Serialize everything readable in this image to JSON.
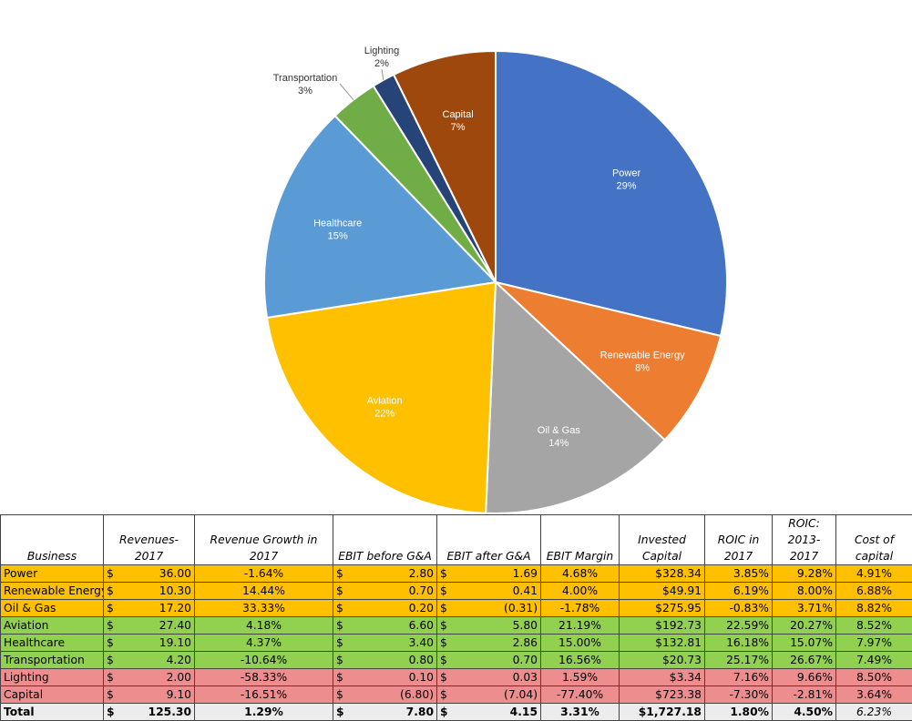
{
  "chart_data": {
    "type": "pie",
    "slices": [
      {
        "label": "Power",
        "value": 36.0,
        "pct": "29%",
        "color": "#4472C4"
      },
      {
        "label": "Renewable Energy",
        "value": 10.3,
        "pct": "8%",
        "color": "#ED7D31"
      },
      {
        "label": "Oil & Gas",
        "value": 17.2,
        "pct": "14%",
        "color": "#A5A5A5"
      },
      {
        "label": "Aviation",
        "value": 27.4,
        "pct": "22%",
        "color": "#FFC000"
      },
      {
        "label": "Healthcare",
        "value": 19.1,
        "pct": "15%",
        "color": "#5B9BD5"
      },
      {
        "label": "Transportation",
        "value": 4.2,
        "pct": "3%",
        "color": "#70AD47"
      },
      {
        "label": "Lighting",
        "value": 2.0,
        "pct": "2%",
        "color": "#264478"
      },
      {
        "label": "Capital",
        "value": 9.1,
        "pct": "7%",
        "color": "#9E480E"
      }
    ],
    "start": "12 o'clock, clockwise"
  },
  "table": {
    "headers": [
      "Business",
      "Revenues- 2017",
      "Revenue Growth in 2017",
      "EBIT before G&A",
      "EBIT after G&A",
      "EBIT Margin",
      "Invested Capital",
      "ROIC in 2017",
      "ROIC: 2013-2017",
      "Cost of capital"
    ],
    "currency": "$",
    "group_colors": {
      "orange": "#FFC000",
      "green": "#92D050",
      "red": "#EE8D8D"
    },
    "rows": [
      {
        "group": "orange",
        "cells": [
          "Power",
          "36.00",
          "-1.64%",
          "2.80",
          "1.69",
          "4.68%",
          "$328.34",
          "3.85%",
          "9.28%",
          "4.91%"
        ]
      },
      {
        "group": "orange",
        "cells": [
          "Renewable Energy",
          "10.30",
          "14.44%",
          "0.70",
          "0.41",
          "4.00%",
          "$49.91",
          "6.19%",
          "8.00%",
          "6.88%"
        ]
      },
      {
        "group": "orange",
        "cells": [
          "Oil & Gas",
          "17.20",
          "33.33%",
          "0.20",
          "(0.31)",
          "-1.78%",
          "$275.95",
          "-0.83%",
          "3.71%",
          "8.82%"
        ]
      },
      {
        "group": "green",
        "cells": [
          "Aviation",
          "27.40",
          "4.18%",
          "6.60",
          "5.80",
          "21.19%",
          "$192.73",
          "22.59%",
          "20.27%",
          "8.52%"
        ]
      },
      {
        "group": "green",
        "cells": [
          "Healthcare",
          "19.10",
          "4.37%",
          "3.40",
          "2.86",
          "15.00%",
          "$132.81",
          "16.18%",
          "15.07%",
          "7.97%"
        ]
      },
      {
        "group": "green",
        "cells": [
          "Transportation",
          "4.20",
          "-10.64%",
          "0.80",
          "0.70",
          "16.56%",
          "$20.73",
          "25.17%",
          "26.67%",
          "7.49%"
        ]
      },
      {
        "group": "red",
        "cells": [
          "Lighting",
          "2.00",
          "-58.33%",
          "0.10",
          "0.03",
          "1.59%",
          "$3.34",
          "7.16%",
          "9.66%",
          "8.50%"
        ]
      },
      {
        "group": "red",
        "cells": [
          "Capital",
          "9.10",
          "-16.51%",
          "(6.80)",
          "(7.04)",
          "-77.40%",
          "$723.38",
          "-7.30%",
          "-2.81%",
          "3.64%"
        ]
      }
    ],
    "total": [
      "Total",
      "125.30",
      "1.29%",
      "7.80",
      "4.15",
      "3.31%",
      "$1,727.18",
      "1.80%",
      "4.50%",
      "6.23%"
    ]
  }
}
